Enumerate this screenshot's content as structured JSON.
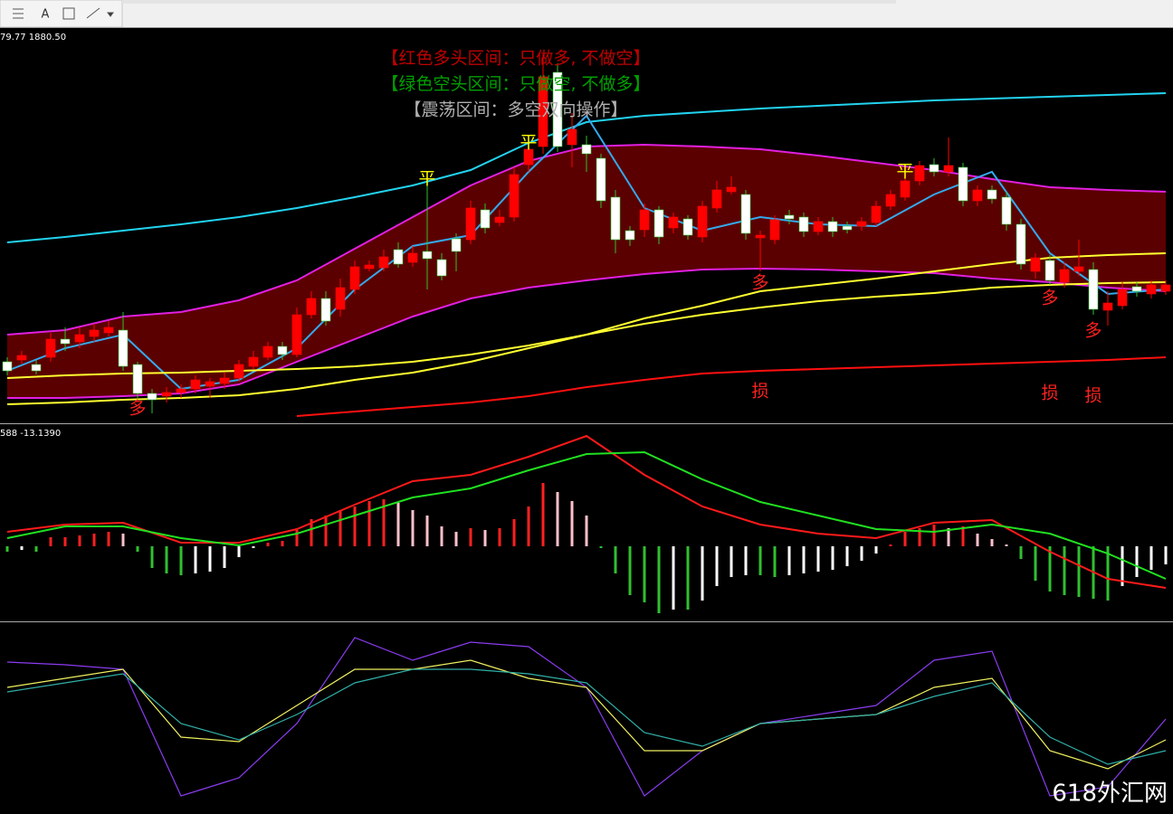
{
  "toolbar": {
    "text_tool": "A"
  },
  "watermark": "618外汇网",
  "chart_data": [
    {
      "type": "candlestick",
      "info": "79.77 1880.50",
      "notes": [
        {
          "text": "【红色多头区间：只做多, 不做空】",
          "color": "#c00000"
        },
        {
          "text": "【绿色空头区间：只做空, 不做多】",
          "color": "#00a000"
        },
        {
          "text": "【震荡区间：多空双向操作】",
          "color": "#b0b0b0"
        }
      ],
      "annotations": [
        {
          "text": "平",
          "color": "#ffff00"
        },
        {
          "text": "平",
          "color": "#ffff00"
        },
        {
          "text": "平",
          "color": "#ffff00"
        },
        {
          "text": "多",
          "color": "#ff2020"
        },
        {
          "text": "多",
          "color": "#ff2020"
        },
        {
          "text": "多",
          "color": "#ff2020"
        },
        {
          "text": "多",
          "color": "#ff2020"
        },
        {
          "text": "损",
          "color": "#ff2020"
        },
        {
          "text": "损",
          "color": "#ff2020"
        },
        {
          "text": "损",
          "color": "#ff2020"
        }
      ],
      "xlim": [
        -0.5,
        80.5
      ],
      "ylim": [
        0,
        435
      ],
      "up_color": "#ff0000",
      "down_color": "#ffffff",
      "open": [
        67,
        69,
        64,
        72,
        92,
        89,
        95,
        99,
        102,
        64,
        32,
        29,
        33,
        37,
        40,
        43,
        49,
        62,
        72,
        84,
        75,
        119,
        137,
        125,
        147,
        170,
        171,
        191,
        177,
        189,
        180,
        203,
        202,
        235,
        221,
        227,
        285,
        305,
        387,
        307,
        307,
        292,
        249,
        212,
        213,
        235,
        215,
        225,
        205,
        237,
        255,
        252,
        204,
        202,
        229,
        227,
        211,
        222,
        217,
        217,
        221,
        239,
        249,
        267,
        285,
        277,
        282,
        245,
        257,
        249,
        219,
        167,
        179,
        155,
        167,
        169,
        124,
        129,
        150,
        142,
        145
      ],
      "high": [
        72,
        79,
        69,
        99,
        105,
        105,
        109,
        112,
        122,
        67,
        37,
        39,
        42,
        52,
        49,
        55,
        69,
        79,
        89,
        89,
        127,
        145,
        145,
        159,
        179,
        179,
        191,
        199,
        195,
        267,
        187,
        209,
        245,
        242,
        235,
        282,
        312,
        407,
        397,
        342,
        317,
        297,
        257,
        217,
        242,
        239,
        232,
        229,
        245,
        267,
        272,
        257,
        212,
        229,
        235,
        232,
        227,
        227,
        222,
        227,
        245,
        257,
        277,
        289,
        292,
        315,
        287,
        262,
        262,
        255,
        225,
        187,
        185,
        177,
        202,
        177,
        145,
        155,
        155,
        157,
        157
      ],
      "low": [
        52,
        65,
        53,
        67,
        79,
        82,
        89,
        95,
        57,
        27,
        10,
        22,
        27,
        32,
        27,
        37,
        45,
        59,
        69,
        69,
        72,
        115,
        107,
        117,
        142,
        167,
        167,
        171,
        172,
        147,
        157,
        167,
        197,
        209,
        217,
        222,
        277,
        297,
        299,
        282,
        277,
        237,
        187,
        195,
        205,
        197,
        209,
        202,
        199,
        232,
        252,
        202,
        167,
        197,
        219,
        205,
        207,
        205,
        209,
        212,
        217,
        235,
        245,
        262,
        272,
        272,
        239,
        239,
        242,
        212,
        169,
        159,
        152,
        149,
        162,
        119,
        107,
        125,
        139,
        137,
        141
      ],
      "close": [
        57,
        74,
        57,
        92,
        87,
        97,
        102,
        105,
        62,
        32,
        25,
        33,
        37,
        47,
        45,
        49,
        64,
        72,
        84,
        75,
        119,
        137,
        112,
        149,
        172,
        174,
        183,
        175,
        187,
        181,
        162,
        189,
        237,
        215,
        227,
        274,
        302,
        382,
        305,
        324,
        297,
        245,
        202,
        202,
        235,
        205,
        227,
        207,
        239,
        257,
        260,
        209,
        207,
        224,
        225,
        211,
        222,
        211,
        213,
        222,
        239,
        252,
        267,
        284,
        277,
        284,
        245,
        257,
        247,
        219,
        175,
        182,
        157,
        169,
        172,
        125,
        132,
        147,
        145,
        152,
        152
      ],
      "series": [
        {
          "name": "ma-slow",
          "color": "#22d3f0",
          "x": [
            0,
            4,
            8,
            12,
            16,
            20,
            24,
            28,
            32,
            36,
            40,
            44,
            48,
            52,
            56,
            60,
            64,
            68,
            72,
            76,
            80
          ],
          "values": [
            199,
            205,
            212,
            219,
            227,
            237,
            249,
            262,
            279,
            309,
            332,
            339,
            343,
            347,
            350,
            353,
            356,
            358,
            360,
            362,
            364
          ]
        },
        {
          "name": "band-upper",
          "color": "#e020e0",
          "x": [
            0,
            4,
            8,
            12,
            16,
            20,
            24,
            28,
            32,
            36,
            40,
            44,
            48,
            52,
            56,
            60,
            64,
            68,
            72,
            76,
            80
          ],
          "values": [
            97,
            102,
            117,
            122,
            135,
            157,
            192,
            227,
            262,
            289,
            305,
            307,
            305,
            302,
            295,
            287,
            279,
            269,
            260,
            257,
            255
          ]
        },
        {
          "name": "band-lower",
          "color": "#e020e0",
          "x": [
            0,
            4,
            8,
            12,
            16,
            20,
            24,
            28,
            32,
            36,
            40,
            44,
            48,
            52,
            56,
            60,
            64,
            68,
            72,
            76,
            80
          ],
          "values": [
            27,
            27,
            29,
            32,
            42,
            67,
            92,
            117,
            137,
            149,
            157,
            164,
            169,
            170,
            169,
            167,
            165,
            159,
            155,
            149,
            145
          ]
        },
        {
          "name": "ma-fast",
          "color": "#33aaee",
          "x": [
            0,
            4,
            8,
            12,
            16,
            20,
            24,
            28,
            32,
            36,
            40,
            44,
            48,
            52,
            56,
            60,
            64,
            68,
            72,
            76,
            80
          ],
          "values": [
            57,
            82,
            97,
            37,
            47,
            82,
            147,
            195,
            207,
            277,
            339,
            237,
            212,
            227,
            219,
            217,
            252,
            277,
            187,
            142,
            147
          ]
        },
        {
          "name": "ma-yellow-1",
          "color": "#ffff30",
          "x": [
            0,
            4,
            8,
            12,
            16,
            20,
            24,
            28,
            32,
            36,
            40,
            44,
            48,
            52,
            56,
            60,
            64,
            68,
            72,
            76,
            80
          ],
          "values": [
            49,
            52,
            54,
            55,
            57,
            59,
            62,
            67,
            75,
            85,
            97,
            109,
            119,
            127,
            134,
            139,
            143,
            149,
            152,
            154,
            155
          ]
        },
        {
          "name": "ma-yellow-2",
          "color": "#ffff30",
          "x": [
            0,
            4,
            8,
            12,
            16,
            20,
            24,
            28,
            32,
            36,
            40,
            44,
            48,
            52,
            56,
            60,
            64,
            68,
            72,
            76,
            80
          ],
          "values": [
            20,
            22,
            25,
            27,
            30,
            37,
            47,
            55,
            67,
            82,
            97,
            115,
            129,
            145,
            152,
            159,
            167,
            175,
            182,
            185,
            187
          ]
        },
        {
          "name": "ma-red",
          "color": "#ff1010",
          "x": [
            0,
            4,
            8,
            12,
            16,
            20,
            24,
            28,
            32,
            36,
            40,
            44,
            48,
            52,
            56,
            60,
            64,
            68,
            72,
            76,
            80
          ],
          "values": [
            null,
            null,
            null,
            null,
            null,
            7,
            12,
            17,
            22,
            29,
            39,
            47,
            54,
            57,
            59,
            61,
            63,
            65,
            67,
            69,
            72
          ]
        }
      ]
    },
    {
      "type": "macd",
      "info": "588 -13.1390",
      "xlim": [
        -0.5,
        80.5
      ],
      "ylim": [
        -83,
        134
      ],
      "bar_colors": {
        "up_rising": "#ff2020",
        "up_falling": "#ffc0cb",
        "down_falling": "#30c030",
        "down_rising": "#ffffff"
      },
      "values": [
        -6,
        -4,
        -6,
        10,
        10,
        12,
        14,
        16,
        14,
        -6,
        -24,
        -30,
        -32,
        -30,
        -28,
        -24,
        -12,
        -2,
        4,
        6,
        18,
        30,
        34,
        40,
        44,
        50,
        52,
        48,
        40,
        34,
        22,
        16,
        20,
        18,
        20,
        30,
        44,
        70,
        60,
        50,
        34,
        -2,
        -30,
        -54,
        -62,
        -74,
        -70,
        -70,
        -60,
        -44,
        -34,
        -32,
        -32,
        -34,
        -32,
        -30,
        -28,
        -26,
        -22,
        -16,
        -8,
        2,
        16,
        20,
        24,
        20,
        22,
        14,
        8,
        2,
        -14,
        -38,
        -50,
        -54,
        -56,
        -58,
        -60,
        -44,
        -34,
        -26,
        -20
      ],
      "series": [
        {
          "name": "macd",
          "color": "#ff1a1a",
          "x": [
            0,
            4,
            8,
            12,
            16,
            20,
            24,
            28,
            32,
            36,
            40,
            44,
            48,
            52,
            56,
            60,
            64,
            68,
            72,
            76,
            80
          ],
          "values": [
            16,
            24,
            26,
            4,
            4,
            19,
            46,
            72,
            79,
            99,
            122,
            79,
            44,
            24,
            14,
            9,
            26,
            29,
            -6,
            -36,
            -46
          ]
        },
        {
          "name": "signal",
          "color": "#20e020",
          "x": [
            0,
            4,
            8,
            12,
            16,
            20,
            24,
            28,
            32,
            36,
            40,
            44,
            48,
            52,
            56,
            60,
            64,
            68,
            72,
            76,
            80
          ],
          "values": [
            9,
            22,
            22,
            9,
            1,
            14,
            34,
            54,
            64,
            84,
            102,
            104,
            74,
            49,
            34,
            19,
            16,
            24,
            14,
            -8,
            -36
          ]
        }
      ]
    },
    {
      "type": "line",
      "xlim": [
        -0.5,
        80.5
      ],
      "ylim": [
        0,
        210
      ],
      "series": [
        {
          "name": "k",
          "color": "#8a3cf0",
          "x": [
            0,
            4,
            8,
            12,
            16,
            20,
            24,
            28,
            32,
            36,
            40,
            44,
            48,
            52,
            56,
            60,
            64,
            68,
            72,
            76,
            80
          ],
          "values": [
            168,
            165,
            160,
            20,
            40,
            100,
            195,
            170,
            190,
            185,
            140,
            20,
            70,
            100,
            110,
            120,
            170,
            180,
            20,
            30,
            105
          ]
        },
        {
          "name": "d",
          "color": "#f0f060",
          "x": [
            0,
            4,
            8,
            12,
            16,
            20,
            24,
            28,
            32,
            36,
            40,
            44,
            48,
            52,
            56,
            60,
            64,
            68,
            72,
            76,
            80
          ],
          "values": [
            140,
            150,
            160,
            85,
            80,
            120,
            160,
            160,
            170,
            150,
            140,
            70,
            70,
            100,
            105,
            110,
            140,
            150,
            70,
            50,
            82
          ]
        },
        {
          "name": "j",
          "color": "#30b0a8",
          "x": [
            0,
            4,
            8,
            12,
            16,
            20,
            24,
            28,
            32,
            36,
            40,
            44,
            48,
            52,
            56,
            60,
            64,
            68,
            72,
            76,
            80
          ],
          "values": [
            135,
            145,
            155,
            100,
            82,
            110,
            145,
            160,
            160,
            155,
            145,
            90,
            75,
            100,
            105,
            110,
            130,
            145,
            85,
            55,
            70
          ]
        }
      ]
    }
  ]
}
